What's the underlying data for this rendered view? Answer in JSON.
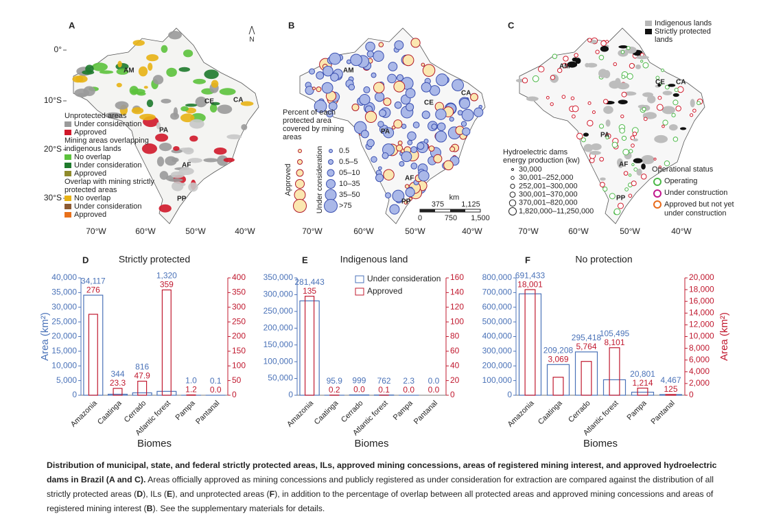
{
  "maps": [
    {
      "letter": "A",
      "biomes": [
        "AM",
        "CE",
        "CA",
        "PA",
        "AF",
        "PP"
      ],
      "north": "N",
      "legend": [
        {
          "heading": "Unprotected areas",
          "items": [
            "Under consideration",
            "Approved"
          ]
        },
        {
          "heading": "Mining areas overlapping indigenous lands",
          "items": [
            "No overlap",
            "Under consideration",
            "Approved"
          ]
        },
        {
          "heading": "Overlap with mining strictly protected areas",
          "items": [
            "No overlap",
            "Under consideration",
            "Approved"
          ]
        }
      ]
    },
    {
      "letter": "B",
      "biomes": [
        "AM",
        "CE",
        "CA",
        "PA",
        "AF",
        "PP"
      ],
      "legend_title": "Percent of each protected area covered by mining areas",
      "groups": [
        "Approved",
        "Under consideration"
      ],
      "classes": [
        "0.5",
        "0.5–5",
        "05–10",
        "10–35",
        "35–50",
        ">75"
      ],
      "scale_unit": "km",
      "scale_labels": [
        "375",
        "1,125",
        "0",
        "750",
        "1,500"
      ]
    },
    {
      "letter": "C",
      "biomes": [
        "AM",
        "CE",
        "CA",
        "PA",
        "AF",
        "PP"
      ],
      "areas": [
        "Indigenous lands",
        "Strictly protected lands"
      ],
      "dams_title": "Hydroelectric dams energy production (kw)",
      "dam_classes": [
        "30,000",
        "30,001–252,000",
        "252,001–300,000",
        "300,001–370,000",
        "370,001–820,000",
        "1,820,000–11,250,000"
      ],
      "status_title": "Operational status",
      "status": [
        "Operating",
        "Under construction",
        "Approved but not yet under construction"
      ]
    }
  ],
  "latitudes": [
    "0°",
    "10°S",
    "20°S",
    "30°S"
  ],
  "longitudes": [
    "70°W",
    "60°W",
    "50°W",
    "40°W"
  ],
  "chart_data": [
    {
      "type": "bar",
      "panel": "D",
      "title": "Strictly protected",
      "xlabel": "Biomes",
      "ylabel": "Area (km²)",
      "categories": [
        "Amazonia",
        "Caatinga",
        "Cerrado",
        "Atlantic forest",
        "Pampa",
        "Pantanal"
      ],
      "series": [
        {
          "color": "#4a72b8",
          "values": [
            34117,
            344,
            816,
            1320,
            1.0,
            0.1
          ],
          "value_labels": [
            "34,117",
            "344",
            "816",
            "1,320",
            "1.0",
            "0.1"
          ]
        },
        {
          "color": "#c0182e",
          "axis": "y2",
          "values": [
            276,
            23.3,
            47.9,
            359,
            1.2,
            0.0
          ],
          "value_labels": [
            "276",
            "23.3",
            "47.9",
            "359",
            "1.2",
            "0.0"
          ]
        }
      ],
      "ylim": [
        0,
        40000
      ],
      "yticks": [
        0,
        {
          "value": 5000,
          "label": "5,000"
        },
        {
          "value": 10000,
          "label": "10,000"
        },
        {
          "value": 15000,
          "label": "15,000"
        },
        {
          "value": 20000,
          "label": "20,000"
        },
        {
          "value": 25000,
          "label": "25,000"
        },
        {
          "value": 30000,
          "label": "30,000"
        },
        {
          "value": 35000,
          "label": "35,000"
        },
        {
          "value": 40000,
          "label": "40,000"
        }
      ],
      "y2lim": [
        0,
        400
      ],
      "y2ticks": [
        0,
        50,
        100,
        150,
        200,
        250,
        300,
        350,
        400
      ]
    },
    {
      "type": "bar",
      "panel": "E",
      "title": "Indigenous land",
      "xlabel": "Biomes",
      "legend": "upper right",
      "categories": [
        "Amazonia",
        "Caatinga",
        "Cerrado",
        "Atlantic forest",
        "Pampa",
        "Pantanal"
      ],
      "series": [
        {
          "name": "Under consideration",
          "color": "#4a72b8",
          "values": [
            281443,
            95.9,
            999,
            762,
            2.3,
            0.0
          ],
          "value_labels": [
            "281,443",
            "95.9",
            "999",
            "762",
            "2.3",
            "0.0"
          ]
        },
        {
          "name": "Approved",
          "color": "#c0182e",
          "axis": "y2",
          "values": [
            135,
            0.2,
            0.0,
            0.1,
            0.0,
            0.0
          ],
          "value_labels": [
            "135",
            "0.2",
            "0.0",
            "0.1",
            "0.0",
            "0.0"
          ]
        }
      ],
      "ylim": [
        0,
        350000
      ],
      "yticks": [
        0,
        {
          "value": 50000,
          "label": "50,000"
        },
        {
          "value": 100000,
          "label": "100,000"
        },
        {
          "value": 150000,
          "label": "150,000"
        },
        {
          "value": 200000,
          "label": "200,000"
        },
        {
          "value": 250000,
          "label": "250,000"
        },
        {
          "value": 300000,
          "label": "300,000"
        },
        {
          "value": 350000,
          "label": "350,000"
        }
      ],
      "y2lim": [
        0,
        160
      ],
      "y2ticks": [
        0,
        20,
        40,
        60,
        80,
        100,
        120,
        140,
        160
      ]
    },
    {
      "type": "bar",
      "panel": "F",
      "title": "No protection",
      "xlabel": "Biomes",
      "y2label": "Area (km²)",
      "categories": [
        "Amazonia",
        "Caatinga",
        "Cerrado",
        "Atlantic forest",
        "Pampa",
        "Pantanal"
      ],
      "series": [
        {
          "color": "#4a72b8",
          "values": [
            691433,
            209208,
            295418,
            105495,
            20801,
            4467
          ],
          "value_labels": [
            "691,433",
            "209,208",
            "295,418",
            "105,495",
            "20,801",
            "4,467"
          ]
        },
        {
          "color": "#c0182e",
          "axis": "y2",
          "values": [
            18001,
            3069,
            5764,
            8101,
            1214,
            125
          ],
          "value_labels": [
            "18,001",
            "3,069",
            "5,764",
            "8,101",
            "1,214",
            "125"
          ]
        }
      ],
      "ylim": [
        0,
        800000
      ],
      "yticks": [
        0,
        {
          "value": 100000,
          "label": "100,000"
        },
        {
          "value": 200000,
          "label": "200,000"
        },
        {
          "value": 300000,
          "label": "300,000"
        },
        {
          "value": 400000,
          "label": "400,000"
        },
        {
          "value": 500000,
          "label": "500,000"
        },
        {
          "value": 600000,
          "label": "600,000"
        },
        {
          "value": 700000,
          "label": "700,000"
        },
        {
          "value": 800000,
          "label": "800,000"
        }
      ],
      "y2lim": [
        0,
        20000
      ],
      "y2ticks": [
        0,
        {
          "value": 2000,
          "label": "2,000"
        },
        {
          "value": 4000,
          "label": "4,000"
        },
        {
          "value": 6000,
          "label": "6,000"
        },
        {
          "value": 8000,
          "label": "8,000"
        },
        {
          "value": 10000,
          "label": "10,000"
        },
        {
          "value": 12000,
          "label": "12,000"
        },
        {
          "value": 14000,
          "label": "14,000"
        },
        {
          "value": 16000,
          "label": "16,000"
        },
        {
          "value": 18000,
          "label": "18,000"
        },
        {
          "value": 20000,
          "label": "20,000"
        }
      ]
    }
  ],
  "caption": {
    "title": "Distribution of municipal, state, and federal strictly protected areas, ILs, approved mining concessions, areas of registered mining interest, and approved hydroelectric dams in Brazil (A and C).",
    "parts": [
      " Areas officially approved as mining concessions and publicly registered as under consideration for extraction are compared against the distribution of all strictly protected areas (",
      "D",
      "), ILs (",
      "E",
      "), and unprotected areas (",
      "F",
      "), in addition to the percentage of overlap between all protected areas and approved mining concessions and areas of registered mining interest (",
      "B",
      "). See the supplementary materials for details."
    ]
  }
}
